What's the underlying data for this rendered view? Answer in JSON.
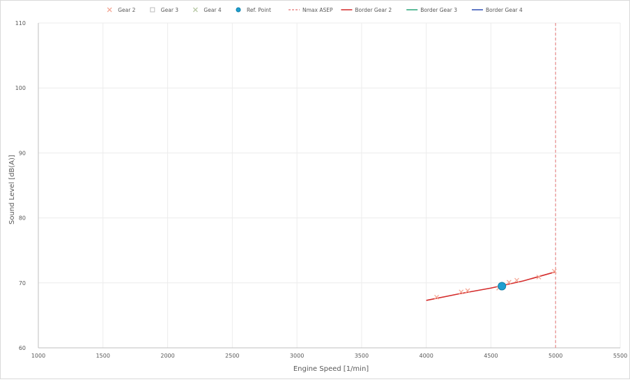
{
  "chart_data": {
    "type": "scatter",
    "xlabel": "Engine Speed [1/min]",
    "ylabel": "Sound Level [dB(A)]",
    "xlim": [
      1000,
      5500
    ],
    "ylim": [
      60,
      110
    ],
    "x_ticks": [
      1000,
      1500,
      2000,
      2500,
      3000,
      3500,
      4000,
      4500,
      5000,
      5500
    ],
    "y_ticks": [
      60,
      70,
      80,
      90,
      100,
      110
    ],
    "y_tick_labels": [
      "60",
      "70",
      "80",
      "90",
      "100",
      "110"
    ],
    "grid": true,
    "legend_position": "top",
    "series": [
      {
        "name": "Gear 2",
        "kind": "marker",
        "marker": "x",
        "color": "#f4a896",
        "x": [
          4080,
          4270,
          4320,
          4560,
          4640,
          4700,
          4870,
          4990
        ],
        "y": [
          67.8,
          68.6,
          68.8,
          69.2,
          70.1,
          70.4,
          70.9,
          71.8
        ]
      },
      {
        "name": "Gear 3",
        "kind": "marker",
        "marker": "square",
        "color": "#bdbdbd",
        "x": [],
        "y": []
      },
      {
        "name": "Gear 4",
        "kind": "marker",
        "marker": "x",
        "color": "#b8c9a6",
        "x": [],
        "y": []
      },
      {
        "name": "Ref. Point",
        "kind": "marker",
        "marker": "circle",
        "color": "#1f9fd0",
        "x": [
          4585
        ],
        "y": [
          69.5
        ]
      },
      {
        "name": "Nmax ASEP",
        "kind": "vline",
        "color": "#e88a8a",
        "x": [
          5000,
          5000
        ],
        "y": [
          60,
          110
        ]
      },
      {
        "name": "Border Gear 2",
        "kind": "line",
        "color": "#d42a2a",
        "x": [
          4000,
          4250,
          4500,
          4750,
          5000
        ],
        "y": [
          67.3,
          68.3,
          69.2,
          70.3,
          71.7
        ]
      },
      {
        "name": "Border Gear 3",
        "kind": "line",
        "color": "#2aa67a",
        "x": [],
        "y": []
      },
      {
        "name": "Border Gear 4",
        "kind": "line",
        "color": "#2d4fb4",
        "x": [],
        "y": []
      }
    ]
  }
}
